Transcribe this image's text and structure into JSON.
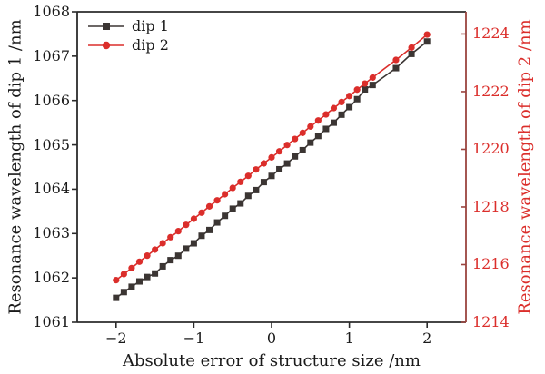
{
  "figure": {
    "background": "#ffffff",
    "frame_color": "#2b2b2b",
    "text_color": "#1a1a1a"
  },
  "chart_data": {
    "type": "line",
    "title": "",
    "x": [
      -2.0,
      -1.9,
      -1.8,
      -1.7,
      -1.6,
      -1.5,
      -1.4,
      -1.3,
      -1.2,
      -1.1,
      -1.0,
      -0.9,
      -0.8,
      -0.7,
      -0.6,
      -0.5,
      -0.4,
      -0.3,
      -0.2,
      -0.1,
      0.0,
      0.1,
      0.2,
      0.3,
      0.4,
      0.5,
      0.6,
      0.7,
      0.8,
      0.9,
      1.0,
      1.1,
      1.2,
      1.3,
      1.6,
      1.8,
      2.0
    ],
    "series": [
      {
        "name": "dip 1",
        "axis": "left",
        "color": "#3b3533",
        "marker": "square",
        "values": [
          1061.55,
          1061.68,
          1061.8,
          1061.92,
          1062.02,
          1062.1,
          1062.26,
          1062.4,
          1062.5,
          1062.66,
          1062.78,
          1062.95,
          1063.08,
          1063.25,
          1063.4,
          1063.56,
          1063.68,
          1063.85,
          1063.98,
          1064.16,
          1064.3,
          1064.45,
          1064.58,
          1064.74,
          1064.88,
          1065.05,
          1065.2,
          1065.36,
          1065.5,
          1065.68,
          1065.85,
          1066.03,
          1066.25,
          1066.35,
          1066.73,
          1067.05,
          1067.33
        ]
      },
      {
        "name": "dip 2",
        "axis": "right",
        "color": "#db2e2b",
        "marker": "circle",
        "values": [
          1215.46,
          1215.67,
          1215.88,
          1216.1,
          1216.31,
          1216.52,
          1216.74,
          1216.95,
          1217.16,
          1217.38,
          1217.59,
          1217.8,
          1218.02,
          1218.23,
          1218.44,
          1218.66,
          1218.87,
          1219.08,
          1219.3,
          1219.51,
          1219.72,
          1219.93,
          1220.15,
          1220.36,
          1220.57,
          1220.79,
          1221.0,
          1221.21,
          1221.43,
          1221.64,
          1221.85,
          1222.07,
          1222.28,
          1222.49,
          1223.1,
          1223.53,
          1223.98
        ]
      }
    ],
    "x_axis": {
      "label": "Absolute error of structure size /nm",
      "range": [
        -2.5,
        2.5
      ],
      "ticks": [
        -2,
        -1,
        0,
        1,
        2
      ],
      "tick_labels": [
        "−2",
        "−1",
        "0",
        "1",
        "2"
      ]
    },
    "y_axis_left": {
      "label": "Resonance wavelength of dip 1 /nm",
      "range": [
        1061,
        1068
      ],
      "ticks": [
        1061,
        1062,
        1063,
        1064,
        1065,
        1066,
        1067,
        1068
      ],
      "color": "#1a1a1a"
    },
    "y_axis_right": {
      "label": "Resonance wavelength of dip 2 /nm",
      "range": [
        1214,
        1224.77
      ],
      "ticks": [
        1214,
        1216,
        1218,
        1220,
        1222,
        1224
      ],
      "color": "#db2e2b",
      "axis_line_color": "#9a443f"
    },
    "legend": {
      "position": "top-left",
      "entries": [
        "dip 1",
        "dip 2"
      ]
    },
    "grid": "off"
  }
}
